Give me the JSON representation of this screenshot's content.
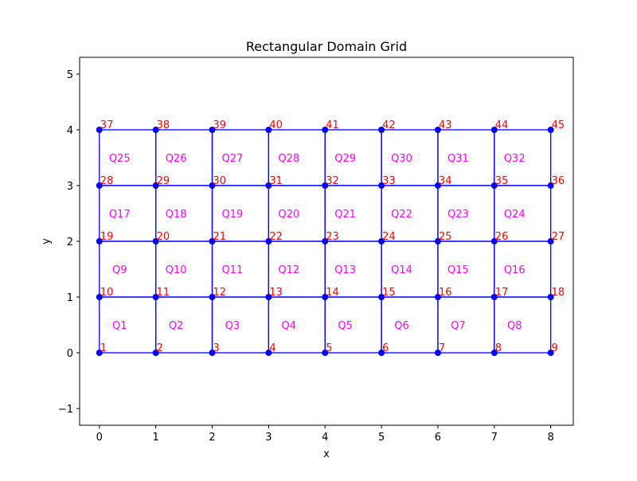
{
  "chart_data": {
    "type": "mesh",
    "title": "Rectangular Domain Grid",
    "xlabel": "x",
    "ylabel": "y",
    "xlim": [
      -0.35,
      8.4
    ],
    "ylim": [
      -1.3,
      5.3
    ],
    "xticks": [
      0,
      1,
      2,
      3,
      4,
      5,
      6,
      7,
      8
    ],
    "yticks": [
      -1,
      0,
      1,
      2,
      3,
      4,
      5
    ],
    "nx": 8,
    "ny": 4,
    "x_min": 0,
    "x_max": 8,
    "y_min": 0,
    "y_max": 4,
    "node_labels": [
      "1",
      "2",
      "3",
      "4",
      "5",
      "6",
      "7",
      "8",
      "9",
      "10",
      "11",
      "12",
      "13",
      "14",
      "15",
      "16",
      "17",
      "18",
      "19",
      "20",
      "21",
      "22",
      "23",
      "24",
      "25",
      "26",
      "27",
      "28",
      "29",
      "30",
      "31",
      "32",
      "33",
      "34",
      "35",
      "36",
      "37",
      "38",
      "39",
      "40",
      "41",
      "42",
      "43",
      "44",
      "45"
    ],
    "element_labels": [
      "Q1",
      "Q2",
      "Q3",
      "Q4",
      "Q5",
      "Q6",
      "Q7",
      "Q8",
      "Q9",
      "Q10",
      "Q11",
      "Q12",
      "Q13",
      "Q14",
      "Q15",
      "Q16",
      "Q17",
      "Q18",
      "Q19",
      "Q20",
      "Q21",
      "Q22",
      "Q23",
      "Q24",
      "Q25",
      "Q26",
      "Q27",
      "Q28",
      "Q29",
      "Q30",
      "Q31",
      "Q32"
    ],
    "colors": {
      "mesh_line": "#0000ff",
      "node_marker": "#0000ff",
      "node_label": "#ff0000",
      "element_label": "#ff00ff",
      "axes": "#000000"
    }
  }
}
